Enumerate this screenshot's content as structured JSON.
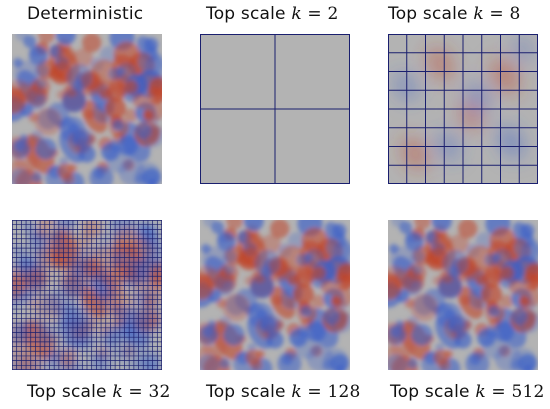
{
  "panels": [
    {
      "title": "Deterministic",
      "prefix": "",
      "k": "",
      "eq": "",
      "value": "",
      "grid": 0,
      "smooth": 0
    },
    {
      "title": "",
      "prefix": "Top scale ",
      "k": "k",
      "eq": " = ",
      "value": "2",
      "grid": 2,
      "smooth": 1.0
    },
    {
      "title": "",
      "prefix": "Top scale ",
      "k": "k",
      "eq": " = ",
      "value": "8",
      "grid": 8,
      "smooth": 0.6
    },
    {
      "title": "",
      "prefix": "Top scale ",
      "k": "k",
      "eq": " = ",
      "value": "32",
      "grid": 32,
      "smooth": 0.15
    },
    {
      "title": "",
      "prefix": "Top scale ",
      "k": "k",
      "eq": " = ",
      "value": "128",
      "grid": 0,
      "smooth": 0.02
    },
    {
      "title": "",
      "prefix": "Top scale ",
      "k": "k",
      "eq": " = ",
      "value": "512",
      "grid": 0,
      "smooth": 0
    }
  ],
  "colors": {
    "neutral": "#b3b3b3",
    "warm": "#c0452a",
    "cool": "#3a5fc8",
    "grid": "#1a1f6e"
  }
}
